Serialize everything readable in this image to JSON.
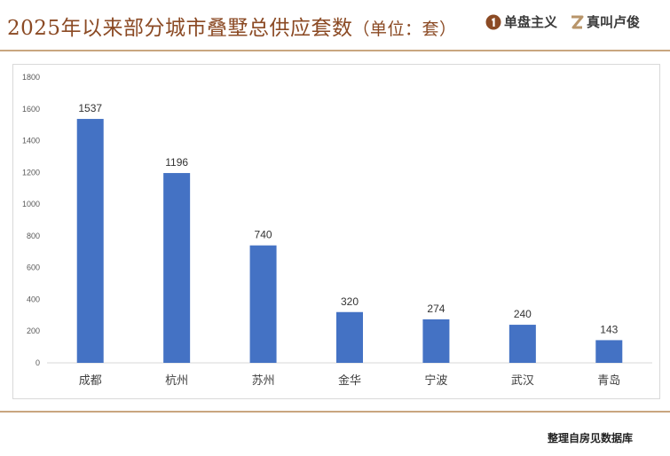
{
  "header": {
    "title_main": "2025年以来部分城市叠墅总供应套数",
    "title_unit": "（单位：套）",
    "logo1_text": "单盘主义",
    "logo2_text": "真叫卢俊"
  },
  "footer": {
    "source": "整理自房见数据库"
  },
  "colors": {
    "bar": "#4472c4",
    "accent": "#c9a67f",
    "title": "#8b4a24"
  },
  "chart_data": {
    "type": "bar",
    "title": "",
    "xlabel": "",
    "ylabel": "",
    "categories": [
      "成都",
      "杭州",
      "苏州",
      "金华",
      "宁波",
      "武汉",
      "青岛"
    ],
    "values": [
      1537,
      1196,
      740,
      320,
      274,
      240,
      143
    ],
    "ylim": [
      0,
      1800
    ],
    "yticks": [
      0,
      200,
      400,
      600,
      800,
      1000,
      1200,
      1400,
      1600,
      1800
    ],
    "grid": false,
    "legend": "none"
  }
}
